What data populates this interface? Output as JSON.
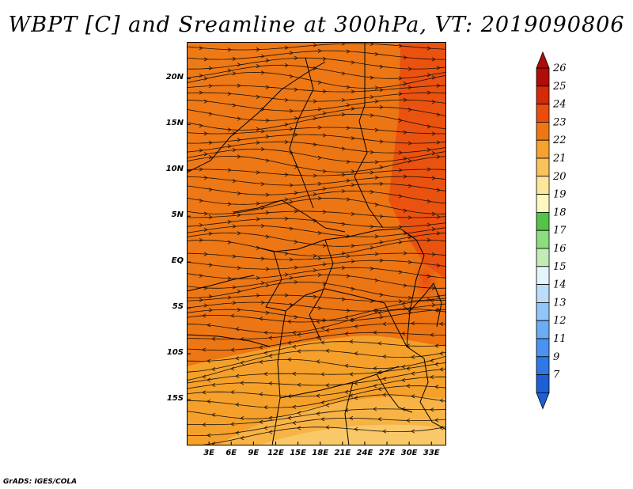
{
  "title": "WBPT [C] and Sreamline at 300hPa, VT: 2019090806",
  "footer": "GrADS: IGES/COLA",
  "map": {
    "lat_range": [
      -20,
      24
    ],
    "lon_range": [
      0,
      35
    ],
    "lat_ticks": [
      {
        "value": 20,
        "label": "20N"
      },
      {
        "value": 15,
        "label": "15N"
      },
      {
        "value": 10,
        "label": "10N"
      },
      {
        "value": 5,
        "label": "5N"
      },
      {
        "value": 0,
        "label": "EQ"
      },
      {
        "value": -5,
        "label": "5S"
      },
      {
        "value": -10,
        "label": "10S"
      },
      {
        "value": -15,
        "label": "15S"
      }
    ],
    "lon_ticks": [
      {
        "value": 3,
        "label": "3E"
      },
      {
        "value": 6,
        "label": "6E"
      },
      {
        "value": 9,
        "label": "9E"
      },
      {
        "value": 12,
        "label": "12E"
      },
      {
        "value": 15,
        "label": "15E"
      },
      {
        "value": 18,
        "label": "18E"
      },
      {
        "value": 21,
        "label": "21E"
      },
      {
        "value": 24,
        "label": "24E"
      },
      {
        "value": 27,
        "label": "27E"
      },
      {
        "value": 30,
        "label": "30E"
      },
      {
        "value": 33,
        "label": "33E"
      }
    ]
  },
  "colorbar": {
    "labels": [
      "7",
      "9",
      "11",
      "12",
      "13",
      "14",
      "15",
      "16",
      "17",
      "18",
      "19",
      "20",
      "21",
      "22",
      "23",
      "24",
      "25",
      "26"
    ],
    "colors": [
      "#1c5fd6",
      "#2f78e6",
      "#4b93f0",
      "#6bacf5",
      "#92c6f8",
      "#bcdcfb",
      "#e6f4fc",
      "#c2ecb6",
      "#8ddc7e",
      "#55c24a",
      "#fdf8bd",
      "#fde59b",
      "#f9c25a",
      "#f5a22e",
      "#ee7714",
      "#ea4d0e",
      "#d32a0a",
      "#b00c08"
    ]
  }
}
